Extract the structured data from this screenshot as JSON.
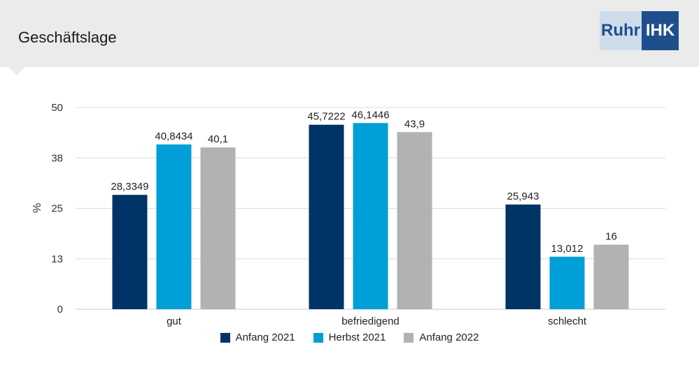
{
  "header": {
    "title": "Geschäftslage"
  },
  "logo": {
    "left_text": "Ruhr",
    "right_text": "IHK"
  },
  "colors": {
    "anfang2021": "#003366",
    "herbst2021": "#009fd8",
    "anfang2022": "#b2b2b2"
  },
  "chart_data": {
    "type": "bar",
    "title": "Geschäftslage",
    "xlabel": "",
    "ylabel": "%",
    "categories": [
      "gut",
      "befriedigend",
      "schlecht"
    ],
    "yticks": [
      "0",
      "13",
      "25",
      "38",
      "50"
    ],
    "ytick_values": [
      0,
      12.5,
      25,
      37.5,
      50
    ],
    "ylim": [
      0,
      50
    ],
    "grid": true,
    "legend_position": "bottom",
    "series": [
      {
        "name": "Anfang 2021",
        "color": "#003366",
        "values": [
          28.3349,
          45.7222,
          25.943
        ],
        "labels": [
          "28,3349",
          "45,7222",
          "25,943"
        ]
      },
      {
        "name": "Herbst 2021",
        "color": "#009fd8",
        "values": [
          40.8434,
          46.1446,
          13.012
        ],
        "labels": [
          "40,8434",
          "46,1446",
          "13,012"
        ]
      },
      {
        "name": "Anfang 2022",
        "color": "#b2b2b2",
        "values": [
          40.1,
          43.9,
          16
        ],
        "labels": [
          "40,1",
          "43,9",
          "16"
        ]
      }
    ]
  }
}
